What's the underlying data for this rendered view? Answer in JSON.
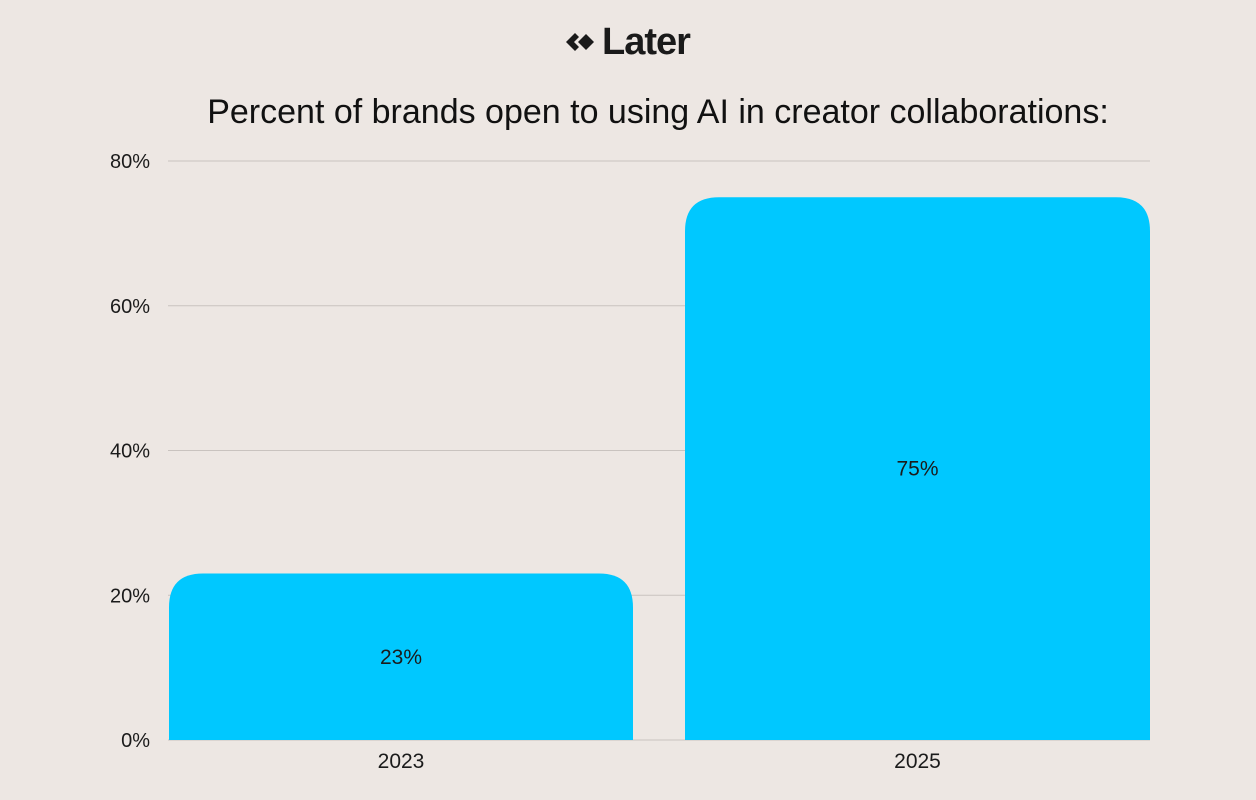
{
  "brand": {
    "name": "Later",
    "logo_icon": "later-diamond-icon"
  },
  "chart_data": {
    "type": "bar",
    "title": "Percent of brands open to using AI in creator collaborations:",
    "categories": [
      "2023",
      "2025"
    ],
    "values": [
      23,
      75
    ],
    "value_labels": [
      "23%",
      "75%"
    ],
    "ylim": [
      0,
      80
    ],
    "yticks": [
      0,
      20,
      40,
      60,
      80
    ],
    "ytick_labels": [
      "0%",
      "20%",
      "40%",
      "60%",
      "80%"
    ],
    "xlabel": "",
    "ylabel": "",
    "grid": true,
    "legend": "none",
    "colors": {
      "bar": "#00c8ff",
      "grid": "#c9c3bf",
      "background": "#ede7e3"
    }
  }
}
